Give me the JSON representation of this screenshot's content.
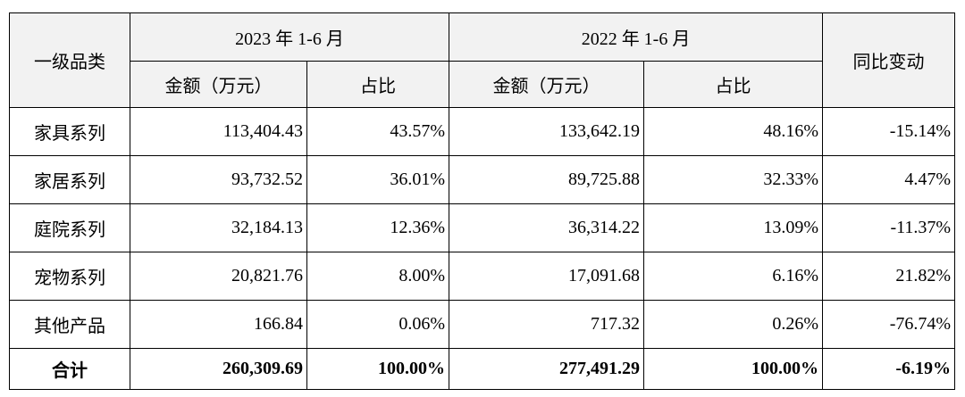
{
  "table": {
    "header": {
      "category": "一级品类",
      "periods": [
        "2023 年 1-6 月",
        "2022 年 1-6 月"
      ],
      "change": "同比变动",
      "sub": [
        "金额（万元）",
        "占比",
        "金额（万元）",
        "占比"
      ]
    },
    "rows": [
      [
        "家具系列",
        "113,404.43",
        "43.57%",
        "133,642.19",
        "48.16%",
        "-15.14%"
      ],
      [
        "家居系列",
        "93,732.52",
        "36.01%",
        "89,725.88",
        "32.33%",
        "4.47%"
      ],
      [
        "庭院系列",
        "32,184.13",
        "12.36%",
        "36,314.22",
        "13.09%",
        "-11.37%"
      ],
      [
        "宠物系列",
        "20,821.76",
        "8.00%",
        "17,091.68",
        "6.16%",
        "21.82%"
      ],
      [
        "其他产品",
        "166.84",
        "0.06%",
        "717.32",
        "0.26%",
        "-76.74%"
      ]
    ],
    "total": [
      "合计",
      "260,309.69",
      "100.00%",
      "277,491.29",
      "100.00%",
      "-6.19%"
    ]
  }
}
